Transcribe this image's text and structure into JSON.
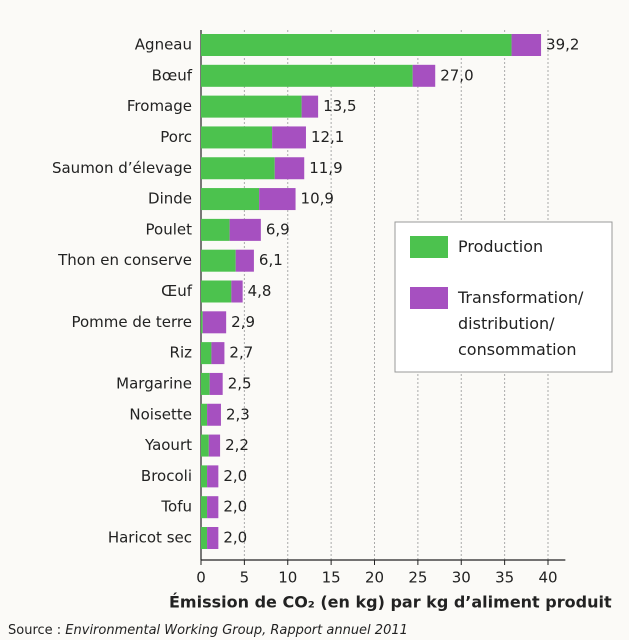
{
  "chart_data": {
    "type": "stacked-bar-horizontal",
    "categories": [
      "Agneau",
      "Bœuf",
      "Fromage",
      "Porc",
      "Saumon d’élevage",
      "Dinde",
      "Poulet",
      "Thon en conserve",
      "Œuf",
      "Pomme de terre",
      "Riz",
      "Margarine",
      "Noisette",
      "Yaourt",
      "Brocoli",
      "Tofu",
      "Haricot sec"
    ],
    "series": [
      {
        "name": "Production",
        "color": "#4cc24e",
        "values": [
          35.8,
          24.4,
          11.6,
          8.2,
          8.5,
          6.7,
          3.3,
          4.0,
          3.5,
          0.2,
          1.2,
          1.0,
          0.7,
          0.9,
          0.7,
          0.7,
          0.7
        ]
      },
      {
        "name": "Transformation/ distribution/ consommation",
        "color": "#a650c0",
        "values": [
          3.4,
          2.6,
          1.9,
          3.9,
          3.4,
          4.2,
          3.6,
          2.1,
          1.3,
          2.7,
          1.5,
          1.5,
          1.6,
          1.3,
          1.3,
          1.3,
          1.3
        ]
      }
    ],
    "totals": [
      39.2,
      27.0,
      13.5,
      12.1,
      11.9,
      10.9,
      6.9,
      6.1,
      4.8,
      2.9,
      2.7,
      2.5,
      2.3,
      2.2,
      2.0,
      2.0,
      2.0
    ],
    "total_labels": [
      "39,2",
      "27,0",
      "13,5",
      "12,1",
      "11,9",
      "10,9",
      "6,9",
      "6,1",
      "4,8",
      "2,9",
      "2,7",
      "2,5",
      "2,3",
      "2,2",
      "2,0",
      "2,0",
      "2,0"
    ],
    "xlim": [
      0,
      42
    ],
    "xticks": [
      0,
      5,
      10,
      15,
      20,
      25,
      30,
      35,
      40
    ],
    "grid": true,
    "x_label": "Émission de CO₂ (en kg) par kg d’aliment produit",
    "source_prefix": "Source : ",
    "source": "Environmental Working Group, Rapport annuel 2011"
  }
}
